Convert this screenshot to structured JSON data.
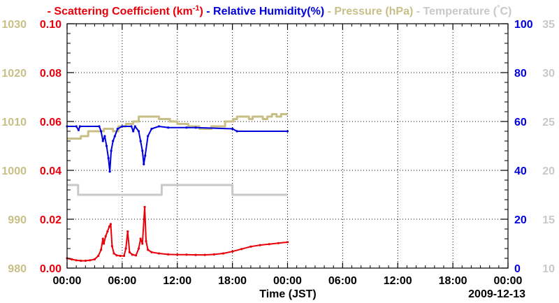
{
  "chart_data": {
    "type": "line",
    "title": "",
    "legend": [
      {
        "key": "scattering",
        "dash": "-",
        "text": "Scattering Coefficient (km",
        "sup": "-1",
        "tail": ")",
        "color": "#e8000b"
      },
      {
        "key": "humidity",
        "dash": "-",
        "text": "Relative Humidity(%)",
        "sup": "",
        "tail": "",
        "color": "#0000dd"
      },
      {
        "key": "pressure",
        "dash": "-",
        "text": "Pressure (hPa)",
        "sup": "",
        "tail": "",
        "color": "#c8bf86"
      },
      {
        "key": "temperature",
        "dash": "-",
        "text": "Temperature (",
        "sup": "°",
        "tail": "C)",
        "color": "#c8c8c8"
      }
    ],
    "xlabel": "Time (JST)",
    "date_label": "2009-12-13",
    "x_range_hours": [
      0,
      48
    ],
    "x_ticks": [
      {
        "hour": 0,
        "label": "00:00"
      },
      {
        "hour": 6,
        "label": "06:00"
      },
      {
        "hour": 12,
        "label": "12:00"
      },
      {
        "hour": 18,
        "label": "18:00"
      },
      {
        "hour": 24,
        "label": "00:00"
      },
      {
        "hour": 30,
        "label": "06:00"
      },
      {
        "hour": 36,
        "label": "12:00"
      },
      {
        "hour": 42,
        "label": "18:00"
      },
      {
        "hour": 48,
        "label": "00:00"
      }
    ],
    "axes": {
      "pressure": {
        "range": [
          980,
          1030
        ],
        "ticks": [
          "980",
          "990",
          "1000",
          "1010",
          "1020",
          "1030"
        ],
        "color": "#c8bf86"
      },
      "scattering": {
        "range": [
          0,
          0.1
        ],
        "ticks": [
          "0.00",
          "0.02",
          "0.04",
          "0.06",
          "0.08",
          "0.10"
        ],
        "color": "#e8000b"
      },
      "humidity": {
        "range": [
          0,
          100
        ],
        "ticks": [
          "0",
          "20",
          "40",
          "60",
          "80",
          "100"
        ],
        "color": "#0000dd"
      },
      "temperature": {
        "range": [
          10,
          35
        ],
        "ticks": [
          "10",
          "15",
          "20",
          "25",
          "30",
          "35"
        ],
        "color": "#c8c8c8"
      }
    },
    "series": [
      {
        "name": "Scattering Coefficient",
        "axis": "scattering",
        "color": "#e8000b",
        "markers": true,
        "points": [
          [
            0.0,
            0.004
          ],
          [
            0.5,
            0.0036
          ],
          [
            1.0,
            0.0032
          ],
          [
            1.5,
            0.003
          ],
          [
            2.0,
            0.003
          ],
          [
            2.5,
            0.0032
          ],
          [
            3.0,
            0.0036
          ],
          [
            3.4,
            0.005
          ],
          [
            3.7,
            0.0075
          ],
          [
            3.9,
            0.012
          ],
          [
            4.0,
            0.01
          ],
          [
            4.2,
            0.013
          ],
          [
            4.4,
            0.015
          ],
          [
            4.6,
            0.017
          ],
          [
            4.75,
            0.018
          ],
          [
            4.9,
            0.009
          ],
          [
            5.1,
            0.006
          ],
          [
            5.4,
            0.0052
          ],
          [
            5.8,
            0.005
          ],
          [
            6.2,
            0.005
          ],
          [
            6.4,
            0.008
          ],
          [
            6.6,
            0.015
          ],
          [
            6.8,
            0.0065
          ],
          [
            7.1,
            0.0055
          ],
          [
            7.5,
            0.0052
          ],
          [
            7.8,
            0.008
          ],
          [
            8.0,
            0.012
          ],
          [
            8.2,
            0.01
          ],
          [
            8.45,
            0.025
          ],
          [
            8.6,
            0.011
          ],
          [
            8.8,
            0.0075
          ],
          [
            9.2,
            0.0065
          ],
          [
            10.0,
            0.006
          ],
          [
            11.0,
            0.0056
          ],
          [
            12.0,
            0.0055
          ],
          [
            13.0,
            0.0055
          ],
          [
            14.0,
            0.0054
          ],
          [
            15.0,
            0.0054
          ],
          [
            16.0,
            0.0056
          ],
          [
            17.0,
            0.006
          ],
          [
            18.0,
            0.0068
          ],
          [
            19.0,
            0.0078
          ],
          [
            20.0,
            0.0088
          ],
          [
            21.0,
            0.0094
          ],
          [
            22.0,
            0.0098
          ],
          [
            23.0,
            0.0102
          ],
          [
            24.0,
            0.0106
          ]
        ]
      },
      {
        "name": "Relative Humidity",
        "axis": "humidity",
        "color": "#0000dd",
        "markers": true,
        "points": [
          [
            0.0,
            58
          ],
          [
            1.0,
            58
          ],
          [
            1.25,
            56.5
          ],
          [
            1.4,
            58
          ],
          [
            3.5,
            58
          ],
          [
            3.7,
            56
          ],
          [
            3.9,
            52
          ],
          [
            4.1,
            54
          ],
          [
            4.3,
            50
          ],
          [
            4.5,
            45
          ],
          [
            4.65,
            39.5
          ],
          [
            4.8,
            48
          ],
          [
            5.0,
            52
          ],
          [
            5.2,
            54
          ],
          [
            5.5,
            57
          ],
          [
            6.0,
            58
          ],
          [
            7.0,
            58
          ],
          [
            7.2,
            56
          ],
          [
            7.4,
            58
          ],
          [
            7.8,
            56
          ],
          [
            8.0,
            52
          ],
          [
            8.2,
            48
          ],
          [
            8.35,
            42.5
          ],
          [
            8.5,
            46
          ],
          [
            8.8,
            54
          ],
          [
            9.2,
            57
          ],
          [
            10.0,
            58
          ],
          [
            11.0,
            57.5
          ],
          [
            13.0,
            57.5
          ],
          [
            14.0,
            57.5
          ],
          [
            18.0,
            57
          ],
          [
            18.5,
            56
          ],
          [
            24.0,
            56
          ]
        ]
      },
      {
        "name": "Pressure",
        "axis": "pressure",
        "color": "#c8bf86",
        "markers": false,
        "points": [
          [
            0.0,
            1006.5
          ],
          [
            1.5,
            1006.5
          ],
          [
            1.5,
            1007
          ],
          [
            2.3,
            1007
          ],
          [
            2.3,
            1008
          ],
          [
            4.0,
            1008
          ],
          [
            4.0,
            1008.5
          ],
          [
            5.0,
            1008.5
          ],
          [
            5.0,
            1008
          ],
          [
            5.6,
            1008
          ],
          [
            5.6,
            1009
          ],
          [
            6.4,
            1009
          ],
          [
            6.4,
            1009.5
          ],
          [
            7.2,
            1009.5
          ],
          [
            7.2,
            1010
          ],
          [
            7.8,
            1010
          ],
          [
            7.8,
            1011
          ],
          [
            10.0,
            1011
          ],
          [
            10.0,
            1010.5
          ],
          [
            11.2,
            1010.5
          ],
          [
            11.2,
            1010
          ],
          [
            12.0,
            1010
          ],
          [
            12.0,
            1009.5
          ],
          [
            13.2,
            1009.5
          ],
          [
            13.2,
            1009
          ],
          [
            14.4,
            1009
          ],
          [
            14.4,
            1008.5
          ],
          [
            15.7,
            1008.5
          ],
          [
            15.7,
            1009
          ],
          [
            17.2,
            1009
          ],
          [
            17.2,
            1010
          ],
          [
            18.1,
            1010
          ],
          [
            18.1,
            1010.5
          ],
          [
            18.5,
            1010.5
          ],
          [
            18.5,
            1011
          ],
          [
            19.8,
            1011
          ],
          [
            19.8,
            1010.5
          ],
          [
            20.2,
            1010.5
          ],
          [
            20.2,
            1011
          ],
          [
            21.3,
            1011
          ],
          [
            21.3,
            1010.5
          ],
          [
            21.8,
            1010.5
          ],
          [
            21.8,
            1011
          ],
          [
            22.3,
            1011
          ],
          [
            22.3,
            1011.5
          ],
          [
            22.8,
            1011.5
          ],
          [
            22.8,
            1011
          ],
          [
            23.3,
            1011
          ],
          [
            23.3,
            1011.5
          ],
          [
            24.0,
            1011.5
          ]
        ]
      },
      {
        "name": "Temperature",
        "axis": "temperature",
        "color": "#c8c8c8",
        "markers": false,
        "points": [
          [
            0.0,
            18.5
          ],
          [
            1.2,
            18.5
          ],
          [
            1.2,
            17.5
          ],
          [
            10.3,
            17.5
          ],
          [
            10.3,
            18.5
          ],
          [
            18.0,
            18.5
          ],
          [
            18.0,
            17.5
          ],
          [
            24.0,
            17.5
          ]
        ]
      }
    ]
  }
}
